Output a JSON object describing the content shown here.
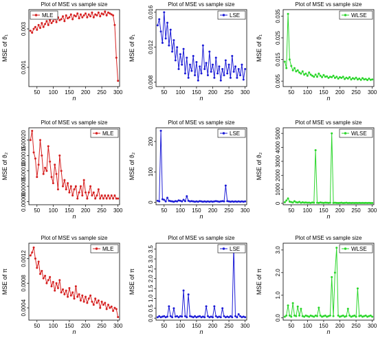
{
  "colors": {
    "red": "#d62020",
    "blue": "#1c1cd6",
    "green": "#2bd62b"
  },
  "chart_data": [
    {
      "type": "line",
      "title": "Plot of MSE vs sample size",
      "xlabel": "n",
      "ylabel": "MSE of ϑ₁",
      "color": "red",
      "legend": "MLE",
      "legend_position": "top-left",
      "xlim": [
        25,
        305
      ],
      "ylim": [
        0,
        0.004
      ],
      "xticks": [
        50,
        100,
        150,
        200,
        250,
        300
      ],
      "yticks": [
        0.001,
        0.003
      ],
      "ytick_labels": [
        "0.001",
        "0.003"
      ],
      "x": [
        30,
        35,
        40,
        45,
        50,
        55,
        60,
        65,
        70,
        75,
        80,
        85,
        90,
        95,
        100,
        105,
        110,
        115,
        120,
        125,
        130,
        135,
        140,
        145,
        150,
        155,
        160,
        165,
        170,
        175,
        180,
        185,
        190,
        195,
        200,
        205,
        210,
        215,
        220,
        225,
        230,
        235,
        240,
        245,
        250,
        255,
        260,
        265,
        270,
        275,
        280,
        285,
        290,
        295,
        300
      ],
      "y": [
        0.0029,
        0.0028,
        0.003,
        0.0031,
        0.00295,
        0.0032,
        0.00305,
        0.0033,
        0.0031,
        0.00325,
        0.0034,
        0.0032,
        0.00345,
        0.0033,
        0.0034,
        0.00355,
        0.00335,
        0.0036,
        0.00345,
        0.0035,
        0.00365,
        0.0034,
        0.0037,
        0.00355,
        0.0036,
        0.00375,
        0.0035,
        0.0037,
        0.00365,
        0.0038,
        0.00355,
        0.00375,
        0.0036,
        0.0037,
        0.0038,
        0.0036,
        0.00375,
        0.00365,
        0.00385,
        0.0036,
        0.00375,
        0.0037,
        0.00385,
        0.00365,
        0.0038,
        0.00375,
        0.0039,
        0.0037,
        0.00385,
        0.0038,
        0.00375,
        0.0037,
        0.0032,
        0.0015,
        0.0003
      ]
    },
    {
      "type": "line",
      "title": "Plot of MSE vs sample size",
      "xlabel": "n",
      "ylabel": "MSE of ϑ₁",
      "color": "blue",
      "legend": "LSE",
      "legend_position": "top-right",
      "xlim": [
        25,
        305
      ],
      "ylim": [
        0.0075,
        0.0163
      ],
      "xticks": [
        50,
        100,
        150,
        200,
        250,
        300
      ],
      "yticks": [
        0.008,
        0.012,
        0.016
      ],
      "ytick_labels": [
        "0.008",
        "0.012",
        "0.016"
      ],
      "x": [
        30,
        35,
        40,
        45,
        50,
        55,
        60,
        65,
        70,
        75,
        80,
        85,
        90,
        95,
        100,
        105,
        110,
        115,
        120,
        125,
        130,
        135,
        140,
        145,
        150,
        155,
        160,
        165,
        170,
        175,
        180,
        185,
        190,
        195,
        200,
        205,
        210,
        215,
        220,
        225,
        230,
        235,
        240,
        245,
        250,
        255,
        260,
        265,
        270,
        275,
        280,
        285,
        290,
        295,
        300
      ],
      "y": [
        0.0145,
        0.0152,
        0.0138,
        0.0125,
        0.016,
        0.013,
        0.0148,
        0.0122,
        0.014,
        0.0115,
        0.0128,
        0.0105,
        0.012,
        0.0095,
        0.0112,
        0.01,
        0.0118,
        0.009,
        0.0108,
        0.0085,
        0.01,
        0.0093,
        0.011,
        0.0088,
        0.0103,
        0.0082,
        0.0098,
        0.009,
        0.0122,
        0.0095,
        0.0102,
        0.0088,
        0.0115,
        0.0092,
        0.01,
        0.0085,
        0.0108,
        0.009,
        0.0098,
        0.0082,
        0.0095,
        0.0088,
        0.0105,
        0.009,
        0.01,
        0.0085,
        0.011,
        0.0092,
        0.0098,
        0.0085,
        0.0095,
        0.0088,
        0.01,
        0.0083,
        0.0095
      ]
    },
    {
      "type": "line",
      "title": "Plot of MSE vs sample size",
      "xlabel": "n",
      "ylabel": "MSE of ϑ₁",
      "color": "green",
      "legend": "WLSE",
      "legend_position": "top-right",
      "xlim": [
        25,
        305
      ],
      "ylim": [
        0.0025,
        0.038
      ],
      "xticks": [
        50,
        100,
        150,
        200,
        250,
        300
      ],
      "yticks": [
        0.005,
        0.015,
        0.025,
        0.035
      ],
      "ytick_labels": [
        "0.005",
        "0.015",
        "0.025",
        "0.035"
      ],
      "x": [
        30,
        35,
        40,
        45,
        50,
        55,
        60,
        65,
        70,
        75,
        80,
        85,
        90,
        95,
        100,
        105,
        110,
        115,
        120,
        125,
        130,
        135,
        140,
        145,
        150,
        155,
        160,
        165,
        170,
        175,
        180,
        185,
        190,
        195,
        200,
        205,
        210,
        215,
        220,
        225,
        230,
        235,
        240,
        245,
        250,
        255,
        260,
        265,
        270,
        275,
        280,
        285,
        290,
        295,
        300
      ],
      "y": [
        0.014,
        0.011,
        0.036,
        0.015,
        0.012,
        0.01,
        0.011,
        0.0095,
        0.01,
        0.009,
        0.0085,
        0.0095,
        0.008,
        0.0085,
        0.0075,
        0.009,
        0.008,
        0.0075,
        0.007,
        0.008,
        0.007,
        0.0085,
        0.0075,
        0.0068,
        0.0078,
        0.007,
        0.0072,
        0.0065,
        0.007,
        0.0068,
        0.0075,
        0.0065,
        0.007,
        0.0062,
        0.0068,
        0.0065,
        0.007,
        0.006,
        0.0066,
        0.0062,
        0.0068,
        0.0058,
        0.0064,
        0.006,
        0.0066,
        0.0058,
        0.0062,
        0.0056,
        0.0064,
        0.0058,
        0.006,
        0.0055,
        0.0062,
        0.0056,
        0.0058
      ]
    },
    {
      "type": "line",
      "title": "Plot of MSE vs sample size",
      "xlabel": "n",
      "ylabel": "MSE of ϑ₂",
      "color": "red",
      "legend": "MLE",
      "legend_position": "top-right",
      "xlim": [
        25,
        305
      ],
      "ylim": [
        -1e-05,
        0.00024
      ],
      "xticks": [
        50,
        100,
        150,
        200,
        250,
        300
      ],
      "yticks": [
        0,
        5e-05,
        0.0001,
        0.00015,
        0.0002
      ],
      "ytick_labels": [
        "0.00000",
        "0.00005",
        "0.00010",
        "0.00015",
        "0.00020"
      ],
      "x": [
        30,
        35,
        40,
        45,
        50,
        55,
        60,
        65,
        70,
        75,
        80,
        85,
        90,
        95,
        100,
        105,
        110,
        115,
        120,
        125,
        130,
        135,
        140,
        145,
        150,
        155,
        160,
        165,
        170,
        175,
        180,
        185,
        190,
        195,
        200,
        205,
        210,
        215,
        220,
        225,
        230,
        235,
        240,
        245,
        250,
        255,
        260,
        265,
        270,
        275,
        280,
        285,
        290,
        295,
        300
      ],
      "y": [
        0.0002,
        0.00023,
        0.00016,
        0.00014,
        8e-05,
        0.00012,
        0.0002,
        0.00015,
        9e-05,
        0.00011,
        0.0001,
        0.00018,
        0.00013,
        8e-05,
        6e-05,
        0.00012,
        9e-05,
        4e-05,
        0.00015,
        0.0001,
        5e-05,
        7e-05,
        4e-05,
        6e-05,
        3e-05,
        5e-05,
        2e-05,
        4e-05,
        5e-05,
        1e-05,
        3e-05,
        5e-05,
        2e-05,
        7e-05,
        3e-05,
        1e-05,
        3e-05,
        5e-05,
        2e-05,
        3e-05,
        1e-05,
        2e-05,
        4e-05,
        1e-05,
        2e-05,
        1e-05,
        2e-05,
        1e-05,
        2e-05,
        1e-05,
        2e-05,
        1e-05,
        2e-05,
        1e-05,
        1e-05
      ]
    },
    {
      "type": "line",
      "title": "Plot of MSE vs sample size",
      "xlabel": "n",
      "ylabel": "MSE of ϑ₂",
      "color": "blue",
      "legend": "LSE",
      "legend_position": "top-right",
      "xlim": [
        25,
        305
      ],
      "ylim": [
        -8,
        245
      ],
      "xticks": [
        50,
        100,
        150,
        200,
        250,
        300
      ],
      "yticks": [
        0,
        100,
        200
      ],
      "ytick_labels": [
        "0",
        "100",
        "200"
      ],
      "x": [
        30,
        35,
        40,
        45,
        50,
        55,
        60,
        65,
        70,
        75,
        80,
        85,
        90,
        95,
        100,
        105,
        110,
        115,
        120,
        125,
        130,
        135,
        140,
        145,
        150,
        155,
        160,
        165,
        170,
        175,
        180,
        185,
        190,
        195,
        200,
        205,
        210,
        215,
        220,
        225,
        230,
        235,
        240,
        245,
        250,
        255,
        260,
        265,
        270,
        275,
        280,
        285,
        290,
        295,
        300
      ],
      "y": [
        5,
        3,
        235,
        10,
        8,
        3,
        15,
        5,
        4,
        3,
        2,
        4,
        3,
        6,
        5,
        3,
        8,
        4,
        20,
        5,
        3,
        4,
        3,
        2,
        3,
        2,
        4,
        3,
        2,
        3,
        2,
        3,
        2,
        3,
        2,
        3,
        4,
        3,
        2,
        3,
        4,
        3,
        55,
        4,
        3,
        2,
        3,
        2,
        3,
        2,
        3,
        2,
        3,
        2,
        3
      ]
    },
    {
      "type": "line",
      "title": "Plot of MSE vs sample size",
      "xlabel": "n",
      "ylabel": "MSE of ϑ₂",
      "color": "green",
      "legend": "WLSE",
      "legend_position": "top-right",
      "xlim": [
        25,
        305
      ],
      "ylim": [
        -100,
        5400
      ],
      "xticks": [
        50,
        100,
        150,
        200,
        250,
        300
      ],
      "yticks": [
        0,
        1000,
        2000,
        3000,
        4000,
        5000
      ],
      "ytick_labels": [
        "0",
        "1000",
        "2000",
        "3000",
        "4000",
        "5000"
      ],
      "x": [
        30,
        35,
        40,
        45,
        50,
        55,
        60,
        65,
        70,
        75,
        80,
        85,
        90,
        95,
        100,
        105,
        110,
        115,
        120,
        125,
        130,
        135,
        140,
        145,
        150,
        155,
        160,
        165,
        170,
        175,
        180,
        185,
        190,
        195,
        200,
        205,
        210,
        215,
        220,
        225,
        230,
        235,
        240,
        245,
        250,
        255,
        260,
        265,
        270,
        275,
        280,
        285,
        290,
        295,
        300
      ],
      "y": [
        80,
        200,
        350,
        120,
        90,
        60,
        150,
        80,
        60,
        100,
        40,
        70,
        50,
        60,
        40,
        50,
        30,
        60,
        40,
        3800,
        40,
        30,
        60,
        40,
        30,
        50,
        40,
        30,
        40,
        5000,
        30,
        40,
        30,
        20,
        30,
        40,
        20,
        30,
        40,
        20,
        30,
        20,
        30,
        20,
        30,
        20,
        30,
        20,
        30,
        20,
        30,
        20,
        30,
        20,
        20
      ]
    },
    {
      "type": "line",
      "title": "Plot of MSE vs sample size",
      "xlabel": "n",
      "ylabel": "MSE of π",
      "color": "red",
      "legend": "MLE",
      "legend_position": "top-right",
      "xlim": [
        25,
        305
      ],
      "ylim": [
        0.0002,
        0.00145
      ],
      "xticks": [
        50,
        100,
        150,
        200,
        250,
        300
      ],
      "yticks": [
        0.0004,
        0.0008,
        0.0012
      ],
      "ytick_labels": [
        "0.0004",
        "0.0008",
        "0.0012"
      ],
      "x": [
        30,
        35,
        40,
        45,
        50,
        55,
        60,
        65,
        70,
        75,
        80,
        85,
        90,
        95,
        100,
        105,
        110,
        115,
        120,
        125,
        130,
        135,
        140,
        145,
        150,
        155,
        160,
        165,
        170,
        175,
        180,
        185,
        190,
        195,
        200,
        205,
        210,
        215,
        220,
        225,
        230,
        235,
        240,
        245,
        250,
        255,
        260,
        265,
        270,
        275,
        280,
        285,
        290,
        295,
        300
      ],
      "y": [
        0.00125,
        0.0013,
        0.00138,
        0.0012,
        0.00105,
        0.00115,
        0.00095,
        0.001,
        0.00088,
        0.00092,
        0.0008,
        0.00085,
        0.0009,
        0.00075,
        0.00082,
        0.00068,
        0.0008,
        0.00072,
        0.00085,
        0.00065,
        0.0007,
        0.00062,
        0.00068,
        0.00058,
        0.00072,
        0.0006,
        0.00065,
        0.00055,
        0.00075,
        0.00058,
        0.00062,
        0.00052,
        0.0006,
        0.0005,
        0.00058,
        0.00048,
        0.00055,
        0.0006,
        0.0005,
        0.00045,
        0.00055,
        0.00048,
        0.00052,
        0.0004,
        0.0005,
        0.00045,
        0.00048,
        0.00038,
        0.00045,
        0.0004,
        0.00042,
        0.00035,
        0.0004,
        0.00038,
        0.00025
      ]
    },
    {
      "type": "line",
      "title": "Plot of MSE vs sample size",
      "xlabel": "n",
      "ylabel": "MSE of π",
      "color": "blue",
      "legend": "LSE",
      "legend_position": "top-right",
      "xlim": [
        25,
        305
      ],
      "ylim": [
        -0.1,
        3.8
      ],
      "xticks": [
        50,
        100,
        150,
        200,
        250,
        300
      ],
      "yticks": [
        0,
        0.5,
        1,
        1.5,
        2,
        2.5,
        3,
        3.5
      ],
      "ytick_labels": [
        "0.0",
        "0.5",
        "1.0",
        "1.5",
        "2.0",
        "2.5",
        "3.0",
        "3.5"
      ],
      "x": [
        30,
        35,
        40,
        45,
        50,
        55,
        60,
        65,
        70,
        75,
        80,
        85,
        90,
        95,
        100,
        105,
        110,
        115,
        120,
        125,
        130,
        135,
        140,
        145,
        150,
        155,
        160,
        165,
        170,
        175,
        180,
        185,
        190,
        195,
        200,
        205,
        210,
        215,
        220,
        225,
        230,
        235,
        240,
        245,
        250,
        255,
        260,
        265,
        270,
        275,
        280,
        285,
        290,
        295,
        300
      ],
      "y": [
        0.05,
        0.1,
        0.05,
        0.08,
        0.1,
        0.05,
        0.08,
        0.6,
        0.1,
        0.05,
        0.5,
        0.08,
        0.1,
        0.05,
        0.1,
        0.08,
        1.4,
        0.1,
        0.05,
        1.2,
        0.1,
        0.08,
        0.05,
        0.1,
        0.05,
        0.08,
        0.1,
        0.05,
        0.08,
        0.05,
        0.6,
        0.1,
        0.05,
        0.08,
        0.05,
        0.6,
        0.1,
        0.05,
        0.08,
        0.05,
        0.5,
        0.1,
        0.05,
        0.08,
        0.05,
        0.1,
        0.05,
        3.6,
        0.1,
        0.05,
        0.2,
        0.1,
        0.05,
        0.08,
        0.05
      ]
    },
    {
      "type": "line",
      "title": "Plot of MSE vs sample size",
      "xlabel": "n",
      "ylabel": "MSE of π",
      "color": "green",
      "legend": "WLSE",
      "legend_position": "top-right",
      "xlim": [
        25,
        305
      ],
      "ylim": [
        -0.1,
        3.3
      ],
      "xticks": [
        50,
        100,
        150,
        200,
        250,
        300
      ],
      "yticks": [
        0,
        1,
        2,
        3
      ],
      "ytick_labels": [
        "0.0",
        "1.0",
        "2.0",
        "3.0"
      ],
      "x": [
        30,
        35,
        40,
        45,
        50,
        55,
        60,
        65,
        70,
        75,
        80,
        85,
        90,
        95,
        100,
        105,
        110,
        115,
        120,
        125,
        130,
        135,
        140,
        145,
        150,
        155,
        160,
        165,
        170,
        175,
        180,
        185,
        190,
        195,
        200,
        205,
        210,
        215,
        220,
        225,
        230,
        235,
        240,
        245,
        250,
        255,
        260,
        265,
        270,
        275,
        280,
        285,
        290,
        295,
        300
      ],
      "y": [
        0.05,
        0.1,
        0.55,
        0.1,
        0.05,
        0.65,
        0.1,
        0.08,
        0.5,
        0.1,
        0.4,
        0.08,
        0.05,
        0.1,
        0.08,
        0.05,
        0.1,
        0.08,
        0.05,
        0.1,
        0.08,
        0.45,
        0.1,
        0.05,
        0.08,
        0.1,
        0.05,
        0.08,
        0.1,
        1.8,
        0.08,
        2.0,
        3.1,
        0.1,
        0.05,
        0.08,
        0.1,
        0.05,
        0.08,
        0.4,
        0.1,
        0.05,
        0.08,
        0.1,
        0.05,
        1.3,
        0.08,
        0.1,
        0.05,
        0.08,
        0.1,
        0.05,
        0.08,
        0.1,
        0.05
      ]
    }
  ]
}
